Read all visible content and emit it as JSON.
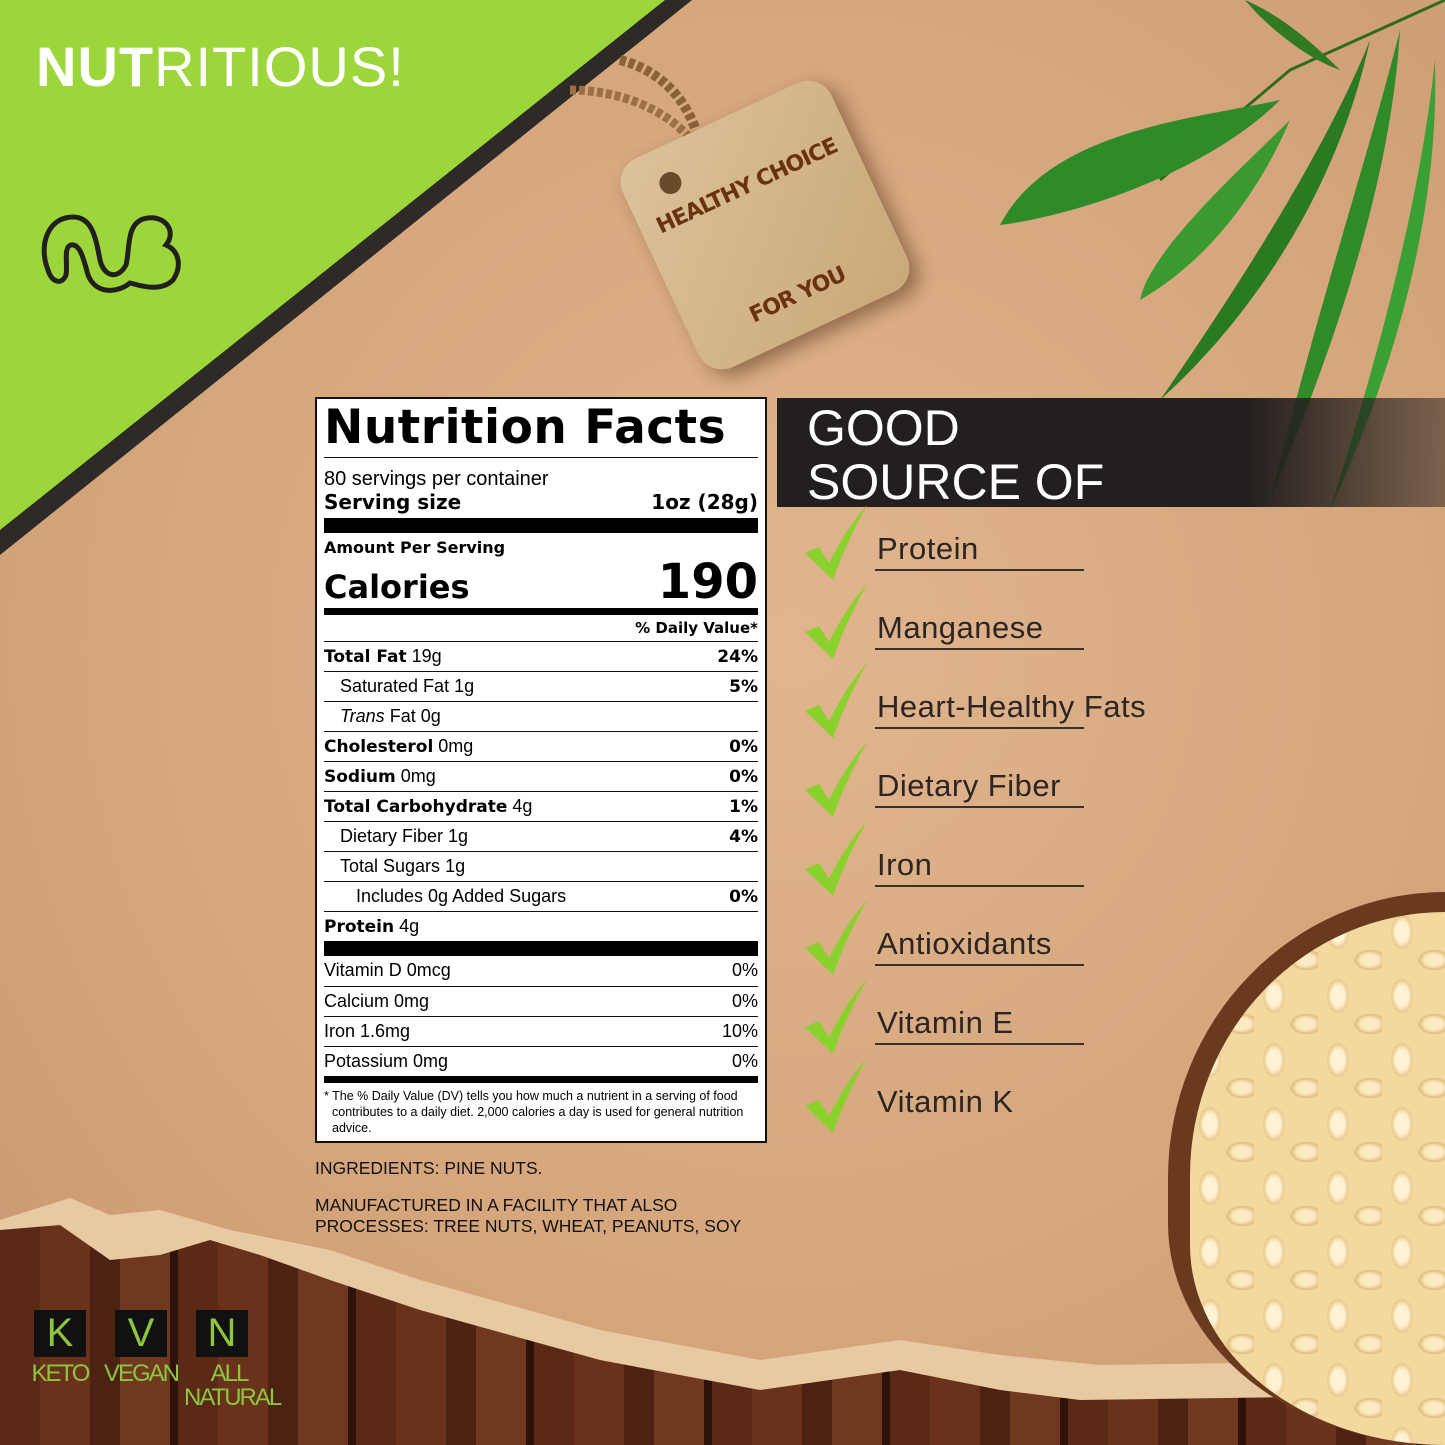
{
  "header": {
    "title_bold": "NUT",
    "title_rest": "RITIOUS!"
  },
  "tag": {
    "line1": "HEALTHY CHOICE",
    "line2": "FOR YOU"
  },
  "colors": {
    "brand_green": "#9cd63a",
    "badge_green": "#8cc63f",
    "dark": "#231f1e"
  },
  "nutrition": {
    "title": "Nutrition Facts",
    "servings": "80 servings per container",
    "serving_size_label": "Serving size",
    "serving_size": "1oz (28g)",
    "amount_per_serving": "Amount Per Serving",
    "calories_label": "Calories",
    "calories": "190",
    "dv_header": "% Daily Value*",
    "rows": [
      {
        "name": "Total Fat",
        "amount": "19g",
        "dv": "24%"
      },
      {
        "name": "Saturated Fat",
        "amount": "1g",
        "dv": "5%"
      },
      {
        "name": "Trans",
        "amount": "Fat 0g",
        "dv": ""
      },
      {
        "name": "Cholesterol",
        "amount": "0mg",
        "dv": "0%"
      },
      {
        "name": "Sodium",
        "amount": "0mg",
        "dv": "0%"
      },
      {
        "name": "Total Carbohydrate",
        "amount": "4g",
        "dv": "1%"
      },
      {
        "name": "Dietary Fiber",
        "amount": "1g",
        "dv": "4%"
      },
      {
        "name": "Total Sugars",
        "amount": "1g",
        "dv": ""
      },
      {
        "name": "Includes 0g Added Sugars",
        "amount": "",
        "dv": "0%"
      },
      {
        "name": "Protein",
        "amount": "4g",
        "dv": ""
      }
    ],
    "vitamins": [
      {
        "name": "Vitamin D 0mcg",
        "dv": "0%"
      },
      {
        "name": "Calcium 0mg",
        "dv": "0%"
      },
      {
        "name": "Iron 1.6mg",
        "dv": "10%"
      },
      {
        "name": "Potassium 0mg",
        "dv": "0%"
      }
    ],
    "footnote": "* The % Daily Value (DV) tells you how much a nutrient in a serving of food contributes to a daily diet. 2,000 calories a day is used for general nutrition advice."
  },
  "ingredients": "INGREDIENTS: PINE NUTS.",
  "allergens_line1": "MANUFACTURED IN A FACILITY THAT ALSO",
  "allergens_line2": "PROCESSES: TREE NUTS, WHEAT, PEANUTS, SOY",
  "good_source": {
    "line1": "GOOD",
    "line2": "SOURCE OF",
    "items": [
      "Protein",
      "Manganese",
      "Heart-Healthy Fats",
      "Dietary Fiber",
      "Iron",
      "Antioxidants",
      "Vitamin E",
      "Vitamin K"
    ]
  },
  "badges": [
    {
      "letter": "K",
      "label": "KETO"
    },
    {
      "letter": "V",
      "label": "VEGAN"
    },
    {
      "letter": "N",
      "label": "ALL",
      "label2": "NATURAL"
    }
  ]
}
